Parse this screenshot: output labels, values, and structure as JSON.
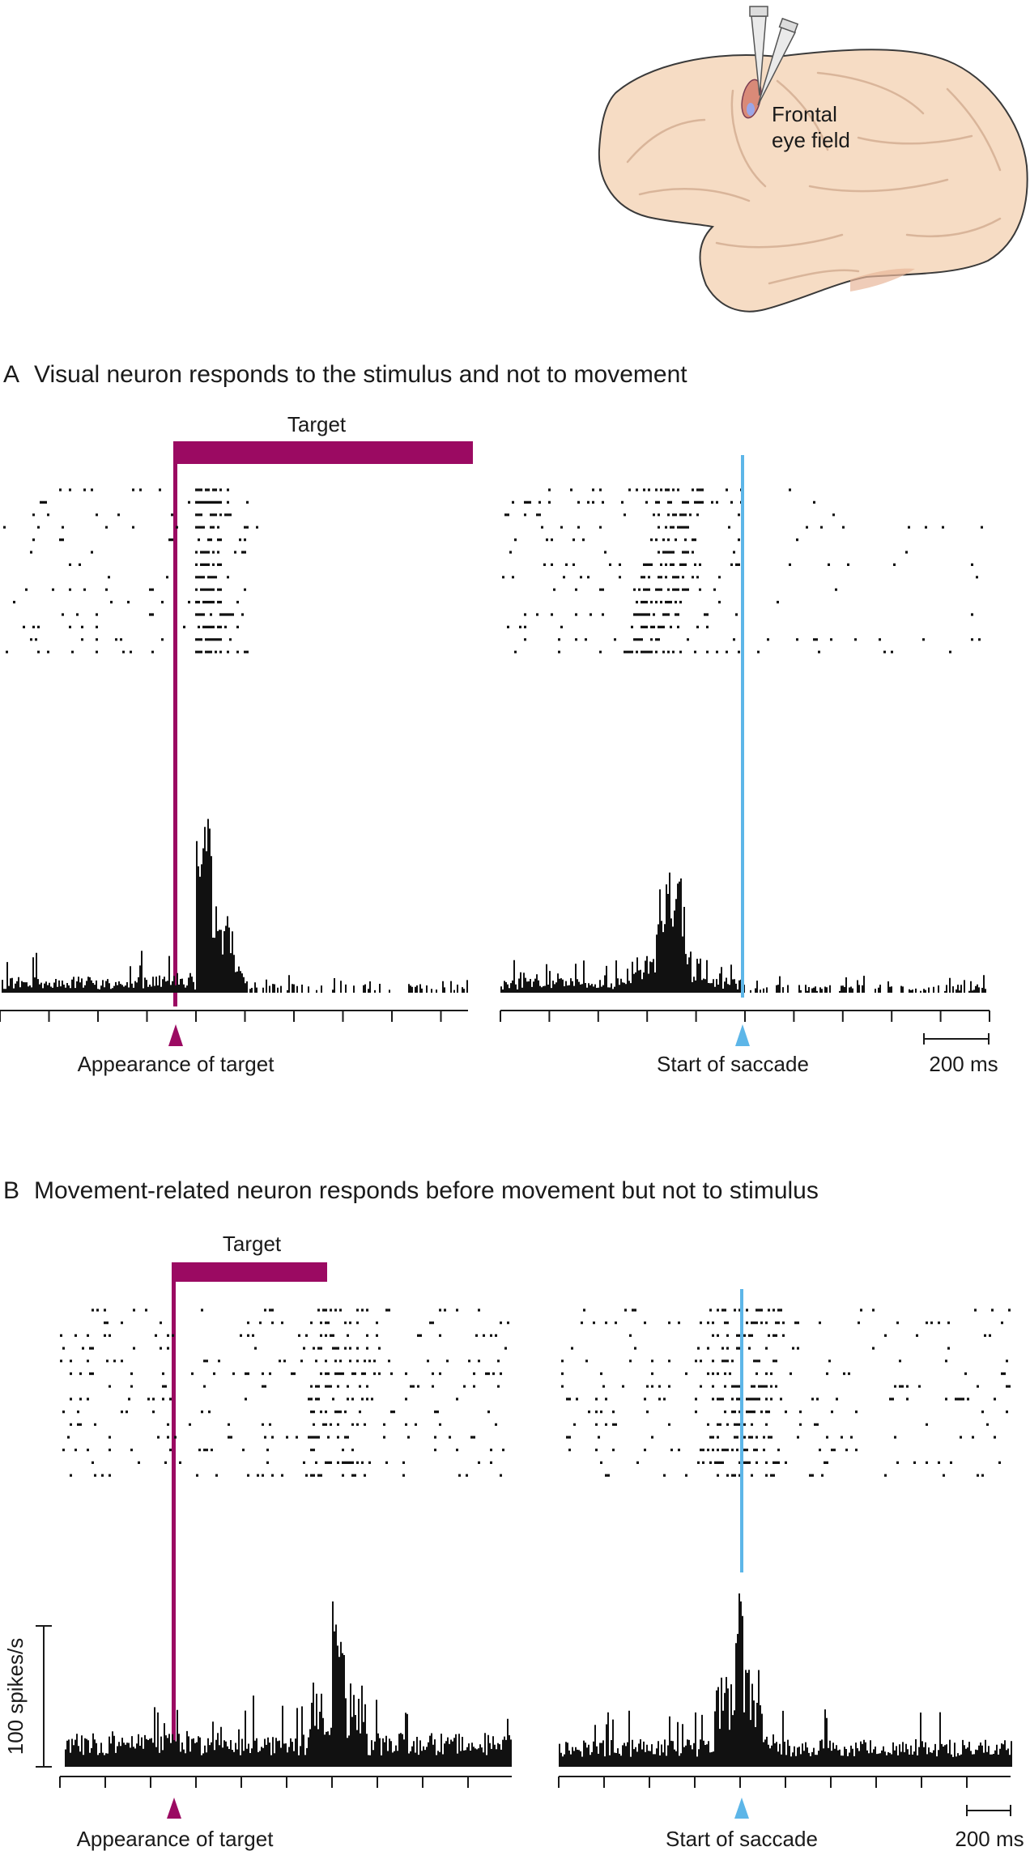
{
  "brain": {
    "label_line1": "Frontal",
    "label_line2": "eye field"
  },
  "panel_a": {
    "letter": "A",
    "title": "Visual neuron responds to the stimulus and not to movement",
    "target_label": "Target",
    "left_marker_label": "Appearance of target",
    "right_marker_label": "Start of saccade",
    "scale_label": "200 ms"
  },
  "panel_b": {
    "letter": "B",
    "title": "Movement-related neuron responds before movement but not to stimulus",
    "target_label": "Target",
    "left_marker_label": "Appearance of target",
    "right_marker_label": "Start of saccade",
    "scale_label": "200 ms",
    "y_scale_label": "100 spikes/s"
  },
  "colors": {
    "target_magenta": "#9b0a62",
    "saccade_blue": "#5db6e8",
    "brain_fill": "#f6dcc4",
    "brain_stroke": "#3a3a3a"
  }
}
